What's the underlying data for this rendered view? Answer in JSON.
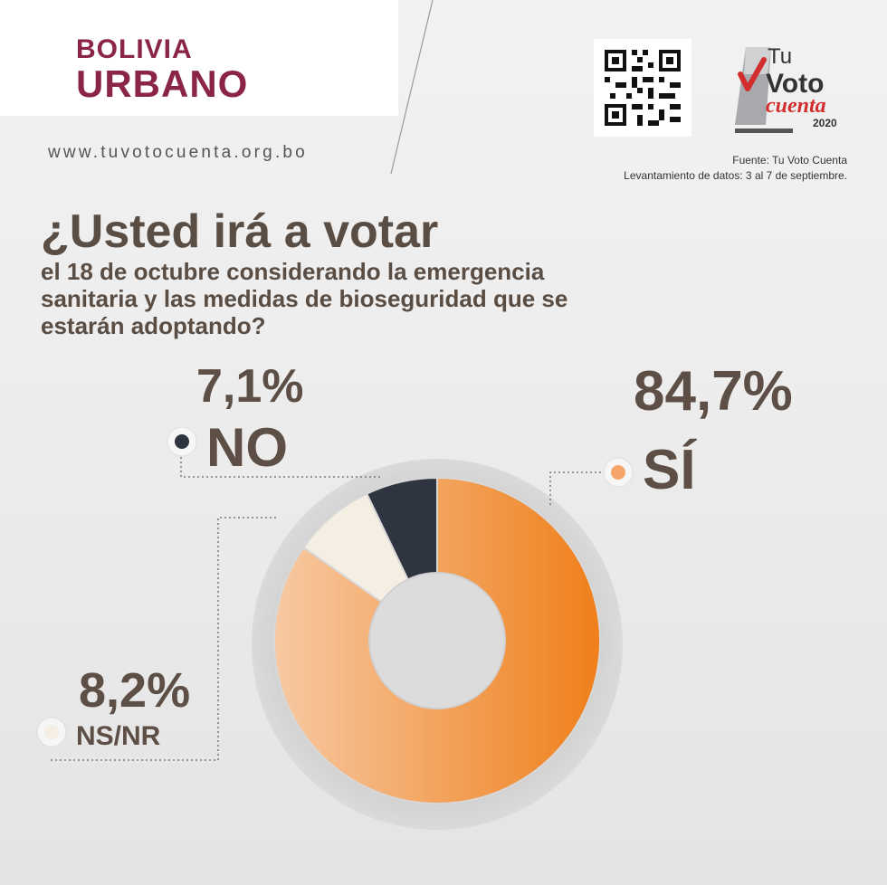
{
  "brand": {
    "line1": "BOLIVIA",
    "line2": "URBANO",
    "color": "#8b2545"
  },
  "website": "www.tuvotocuenta.org.bo",
  "logo": {
    "text_tu": "Tu",
    "text_voto": "Voto",
    "text_cuenta": "cuenta",
    "year": "2020"
  },
  "source": {
    "line1": "Fuente: Tu Voto Cuenta",
    "line2": "Levantamiento de datos: 3 al 7 de septiembre."
  },
  "question": {
    "main": "¿Usted irá a votar",
    "sub": "el 18 de octubre considerando la emergencia sanitaria y las medidas de bioseguridad que se estarán adoptando?"
  },
  "chart_data": {
    "type": "pie",
    "donut": true,
    "title": "¿Usted irá a votar el 18 de octubre considerando la emergencia sanitaria y las medidas de bioseguridad que se estarán adoptando?",
    "slices": [
      {
        "label": "SÍ",
        "value": 84.7,
        "display": "84,7%",
        "color": "#f08a2c"
      },
      {
        "label": "NS/NR",
        "value": 8.2,
        "display": "8,2%",
        "color": "#f5efe3"
      },
      {
        "label": "NO",
        "value": 7.1,
        "display": "7,1%",
        "color": "#2f3441"
      }
    ]
  }
}
